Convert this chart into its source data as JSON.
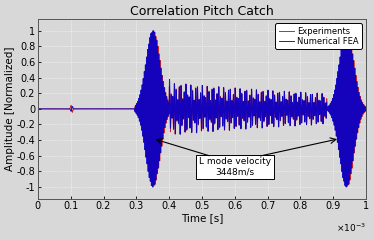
{
  "title": "Correlation Pitch Catch",
  "xlabel": "Time [s]",
  "ylabel": "Amplitude [Normalized]",
  "xlim": [
    0,
    0.001
  ],
  "ylim": [
    -1.15,
    1.15
  ],
  "xticks": [
    0,
    0.0001,
    0.0002,
    0.0003,
    0.0004,
    0.0005,
    0.0006,
    0.0007,
    0.0008,
    0.0009,
    0.001
  ],
  "xtick_labels": [
    "0",
    "0.1",
    "0.2",
    "0.3",
    "0.4",
    "0.5",
    "0.6",
    "0.7",
    "0.8",
    "0.9",
    "1"
  ],
  "yticks": [
    -1,
    -0.8,
    -0.6,
    -0.4,
    -0.2,
    0,
    0.2,
    0.4,
    0.6,
    0.8,
    1
  ],
  "ytick_labels": [
    "-1",
    "-0.8",
    "-0.6",
    "-0.4",
    "-0.2",
    "0",
    "0.2",
    "0.4",
    "0.6",
    "0.8",
    "1"
  ],
  "color_fea": "#0000cc",
  "color_exp": "#cc1111",
  "annotation_text": "L mode velocity\n3448m/s",
  "legend_labels": [
    "Numerical FEA",
    "Experiments"
  ],
  "bg_color": "#d8d8d8",
  "grid_color": "#ffffff",
  "title_fontsize": 9,
  "label_fontsize": 7.5,
  "tick_fontsize": 7,
  "lw_fea": 0.7,
  "lw_exp": 0.7
}
